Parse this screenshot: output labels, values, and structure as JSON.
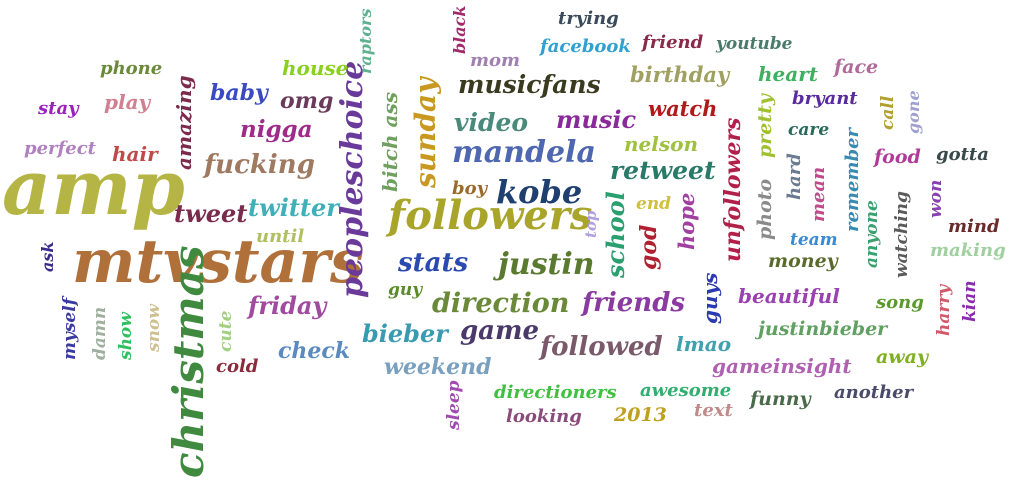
{
  "words": [
    {
      "text": "amp",
      "color": "#b5b545"
    },
    {
      "text": "mtvstars",
      "color": "#b0703a"
    },
    {
      "text": "christmas",
      "color": "#3f8a3f"
    },
    {
      "text": "followers",
      "color": "#a9a52a"
    },
    {
      "text": "peopleschoice",
      "color": "#6a3a9a"
    },
    {
      "text": "kobe",
      "color": "#1e3f6f"
    },
    {
      "text": "mandela",
      "color": "#4f67b0"
    },
    {
      "text": "justin",
      "color": "#5a7a30"
    },
    {
      "text": "direction",
      "color": "#6a8a3a"
    },
    {
      "text": "musicfans",
      "color": "#3a3a20"
    },
    {
      "text": "sunday",
      "color": "#c89820"
    },
    {
      "text": "video",
      "color": "#4a8a7a"
    },
    {
      "text": "music",
      "color": "#8a2a9a"
    },
    {
      "text": "retweet",
      "color": "#2a7a6a"
    },
    {
      "text": "friends",
      "color": "#8a3aa0"
    },
    {
      "text": "followed",
      "color": "#7a5a6a"
    },
    {
      "text": "game",
      "color": "#4a3a6a"
    },
    {
      "text": "stats",
      "color": "#2a4ab0"
    },
    {
      "text": "school",
      "color": "#2aa070"
    },
    {
      "text": "unfollowers",
      "color": "#b0204a"
    },
    {
      "text": "fucking",
      "color": "#a07a60"
    },
    {
      "text": "twitter",
      "color": "#40b0b8"
    },
    {
      "text": "bieber",
      "color": "#3a9ab0"
    },
    {
      "text": "weekend",
      "color": "#7aa0c0"
    },
    {
      "text": "friday",
      "color": "#a04aa0"
    },
    {
      "text": "check",
      "color": "#5a8ac0"
    },
    {
      "text": "tweet",
      "color": "#7a2a4a"
    },
    {
      "text": "nigga",
      "color": "#a02a8a"
    },
    {
      "text": "baby",
      "color": "#3a4ac0"
    },
    {
      "text": "omg",
      "color": "#6a3a5a"
    },
    {
      "text": "amazing",
      "color": "#7a2a4a"
    },
    {
      "text": "house",
      "color": "#8ad020"
    },
    {
      "text": "phone",
      "color": "#6a8a3a"
    },
    {
      "text": "play",
      "color": "#d08090"
    },
    {
      "text": "stay",
      "color": "#9a20c0"
    },
    {
      "text": "perfect",
      "color": "#b080c0"
    },
    {
      "text": "hair",
      "color": "#c04a4a"
    },
    {
      "text": "ask",
      "color": "#3a2a8a"
    },
    {
      "text": "until",
      "color": "#b0c060"
    },
    {
      "text": "raptors",
      "color": "#60b090"
    },
    {
      "text": "black",
      "color": "#a02a6a"
    },
    {
      "text": "mom",
      "color": "#a080b0"
    },
    {
      "text": "trying",
      "color": "#3a4a5a"
    },
    {
      "text": "facebook",
      "color": "#30a0d0"
    },
    {
      "text": "friend",
      "color": "#8a2a4a"
    },
    {
      "text": "youtube",
      "color": "#4a7a6a"
    },
    {
      "text": "birthday",
      "color": "#a0a060"
    },
    {
      "text": "heart",
      "color": "#40b060"
    },
    {
      "text": "face",
      "color": "#b06a9a"
    },
    {
      "text": "watch",
      "color": "#b01a1a"
    },
    {
      "text": "pretty",
      "color": "#a0c030"
    },
    {
      "text": "bryant",
      "color": "#5a2aa0"
    },
    {
      "text": "call",
      "color": "#b0a030"
    },
    {
      "text": "gone",
      "color": "#a0a0d0"
    },
    {
      "text": "care",
      "color": "#2a6a5a"
    },
    {
      "text": "nelson",
      "color": "#a0c040"
    },
    {
      "text": "boy",
      "color": "#9a6a2a"
    },
    {
      "text": "bitch ass",
      "color": "#70a060"
    },
    {
      "text": "end",
      "color": "#d0c040"
    },
    {
      "text": "top",
      "color": "#b0a0e0"
    },
    {
      "text": "god",
      "color": "#b02030"
    },
    {
      "text": "hope",
      "color": "#a040a0"
    },
    {
      "text": "photo",
      "color": "#8a8a8a"
    },
    {
      "text": "hard",
      "color": "#6a7a90"
    },
    {
      "text": "mean",
      "color": "#c04a8a"
    },
    {
      "text": "remember",
      "color": "#3a8ab0"
    },
    {
      "text": "food",
      "color": "#b03a9a"
    },
    {
      "text": "gotta",
      "color": "#3a4a4a"
    },
    {
      "text": "won",
      "color": "#8a40b0"
    },
    {
      "text": "watching",
      "color": "#5a5a5a"
    },
    {
      "text": "anyone",
      "color": "#3aa070"
    },
    {
      "text": "team",
      "color": "#3a8ad0"
    },
    {
      "text": "money",
      "color": "#5a6a2a"
    },
    {
      "text": "mind",
      "color": "#6a2a2a"
    },
    {
      "text": "making",
      "color": "#a0d0a0"
    },
    {
      "text": "guy",
      "color": "#5a8a2a"
    },
    {
      "text": "guys",
      "color": "#2a3ab0"
    },
    {
      "text": "beautiful",
      "color": "#9a40b0"
    },
    {
      "text": "song",
      "color": "#5a9a2a"
    },
    {
      "text": "harry",
      "color": "#d05a6a"
    },
    {
      "text": "kian",
      "color": "#8a2ab0"
    },
    {
      "text": "justinbieber",
      "color": "#60a060"
    },
    {
      "text": "lmao",
      "color": "#40a0b0"
    },
    {
      "text": "gameinsight",
      "color": "#b060b0"
    },
    {
      "text": "away",
      "color": "#80b020"
    },
    {
      "text": "myself",
      "color": "#3a3aa0"
    },
    {
      "text": "damn",
      "color": "#a0b0a0"
    },
    {
      "text": "show",
      "color": "#30c060"
    },
    {
      "text": "snow",
      "color": "#d0c090"
    },
    {
      "text": "cute",
      "color": "#a0d080"
    },
    {
      "text": "cold",
      "color": "#8a2a3a"
    },
    {
      "text": "directioners",
      "color": "#40c040"
    },
    {
      "text": "awesome",
      "color": "#30b070"
    },
    {
      "text": "funny",
      "color": "#4a6a4a"
    },
    {
      "text": "another",
      "color": "#4a4a6a"
    },
    {
      "text": "sleep",
      "color": "#a04ab0"
    },
    {
      "text": "looking",
      "color": "#8a4a7a"
    },
    {
      "text": "2013",
      "color": "#c0a020"
    },
    {
      "text": "text",
      "color": "#c08a8a"
    }
  ]
}
